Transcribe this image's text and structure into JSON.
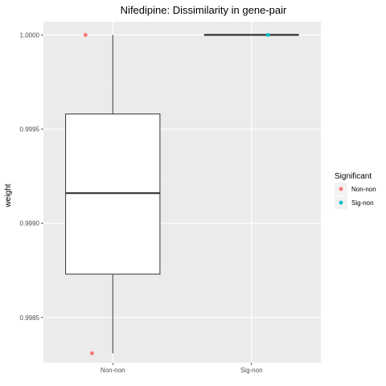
{
  "chart_data": {
    "type": "boxplot",
    "title": "Nifedipine: Dissimilarity in gene-pair",
    "xlabel": "",
    "ylabel": "weight",
    "categories": [
      "Non-non",
      "Sig-non"
    ],
    "ylim": [
      0.99826,
      1.00007
    ],
    "yticks": [
      0.9985,
      0.999,
      0.9995,
      1.0
    ],
    "ytick_labels": [
      "0.9985",
      "0.9990",
      "0.9995",
      "1.0000"
    ],
    "grid": true,
    "legend": {
      "title": "Significant",
      "position": "right",
      "entries": [
        {
          "label": "Non-non",
          "color": "#F8766D"
        },
        {
          "label": "Sig-non",
          "color": "#00BFC4"
        }
      ]
    },
    "boxes": [
      {
        "category": "Non-non",
        "q1": 0.99873,
        "median": 0.99916,
        "q3": 0.99958,
        "whisker_low": 0.99831,
        "whisker_high": 1.0
      },
      {
        "category": "Sig-non",
        "q1": 1.0,
        "median": 1.0,
        "q3": 1.0,
        "whisker_low": 1.0,
        "whisker_high": 1.0
      }
    ],
    "points": [
      {
        "category": "Non-non",
        "series": "Non-non",
        "y": 1.0
      },
      {
        "category": "Non-non",
        "series": "Non-non",
        "y": 0.99831
      },
      {
        "category": "Sig-non",
        "series": "Sig-non",
        "y": 1.0
      }
    ]
  }
}
